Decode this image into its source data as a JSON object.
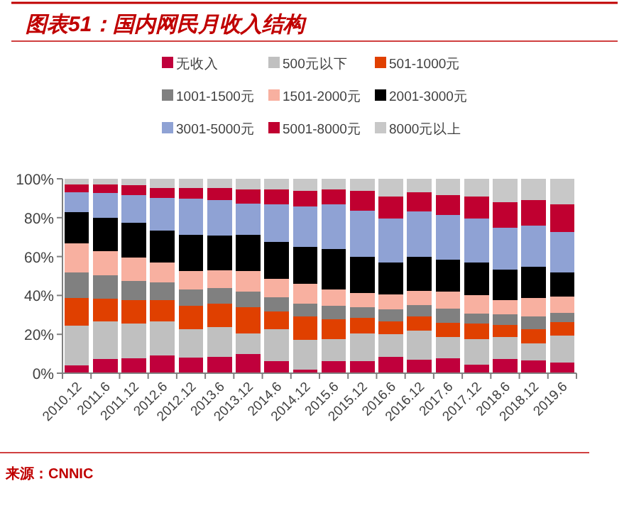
{
  "chart_data": {
    "type": "bar",
    "title": "图表51：国内网民月收入结构",
    "stacked": true,
    "legend": "top",
    "categories": [
      "2010.12",
      "2011.6",
      "2011.12",
      "2012.6",
      "2012.12",
      "2013.6",
      "2013.12",
      "2014.6",
      "2014.12",
      "2015.6",
      "2015.12",
      "2016.6",
      "2016.12",
      "2017.6",
      "2017.12",
      "2018.6",
      "2018.12",
      "2019.6"
    ],
    "series": [
      {
        "name": "无收入",
        "color": "#c0003c",
        "values": [
          4.1,
          7.3,
          7.5,
          9.0,
          8.0,
          8.5,
          9.7,
          6.1,
          1.7,
          6.1,
          6.1,
          8.5,
          6.8,
          7.8,
          4.4,
          7.3,
          6.6,
          5.3
        ]
      },
      {
        "name": "500元以下",
        "color": "#c0c0c0",
        "values": [
          20.2,
          19.4,
          18.0,
          17.7,
          14.6,
          15.3,
          10.9,
          16.5,
          15.3,
          11.6,
          14.5,
          11.6,
          15.0,
          10.9,
          13.3,
          11.4,
          8.7,
          14.1
        ]
      },
      {
        "name": "501-1000元",
        "color": "#e04000",
        "values": [
          14.5,
          11.6,
          12.1,
          10.9,
          12.1,
          11.9,
          13.4,
          9.0,
          12.1,
          10.2,
          7.8,
          6.6,
          7.3,
          7.3,
          7.8,
          6.3,
          7.3,
          6.8
        ]
      },
      {
        "name": "1001-1500元",
        "color": "#808080",
        "values": [
          12.9,
          11.9,
          9.7,
          9.2,
          8.3,
          8.0,
          8.0,
          7.5,
          6.6,
          6.6,
          5.6,
          6.1,
          6.1,
          7.3,
          5.3,
          5.3,
          6.5,
          4.9
        ]
      },
      {
        "name": "1501-2000元",
        "color": "#f8b0a0",
        "values": [
          15.0,
          12.4,
          12.2,
          10.2,
          9.7,
          9.2,
          10.7,
          9.4,
          10.4,
          8.5,
          7.3,
          7.7,
          7.3,
          8.7,
          9.2,
          7.3,
          9.7,
          8.2
        ]
      },
      {
        "name": "2001-3000元",
        "color": "#000000",
        "values": [
          16.1,
          17.5,
          17.7,
          16.5,
          18.4,
          18.0,
          18.4,
          19.0,
          18.7,
          20.8,
          18.6,
          16.5,
          17.4,
          16.3,
          17.0,
          15.8,
          15.8,
          12.4
        ]
      },
      {
        "name": "3001-5000元",
        "color": "#8fa2d4",
        "values": [
          10.2,
          12.6,
          14.3,
          16.8,
          18.7,
          18.2,
          16.3,
          19.4,
          20.9,
          23.1,
          23.8,
          22.4,
          23.4,
          23.0,
          22.6,
          21.4,
          21.4,
          21.1
        ]
      },
      {
        "name": "5001-8000元",
        "color": "#c00030",
        "values": [
          4.1,
          4.4,
          5.1,
          5.1,
          5.3,
          6.3,
          7.3,
          7.8,
          8.2,
          7.8,
          10.2,
          11.6,
          9.7,
          10.4,
          11.4,
          13.3,
          13.1,
          13.9
        ]
      },
      {
        "name": "8000元以上",
        "color": "#c8c8c8",
        "values": [
          2.9,
          2.9,
          3.4,
          4.6,
          4.9,
          4.6,
          5.3,
          5.3,
          6.1,
          5.3,
          6.1,
          9.0,
          7.0,
          8.3,
          9.0,
          11.9,
          10.9,
          13.3
        ]
      }
    ],
    "ylim": [
      0,
      100
    ],
    "yticks": [
      {
        "value": 0,
        "label": "0%"
      },
      {
        "value": 20,
        "label": "20%"
      },
      {
        "value": 40,
        "label": "40%"
      },
      {
        "value": 60,
        "label": "60%"
      },
      {
        "value": 80,
        "label": "80%"
      },
      {
        "value": 100,
        "label": "100%"
      }
    ],
    "annotations": [
      "来源：CNNIC"
    ]
  }
}
